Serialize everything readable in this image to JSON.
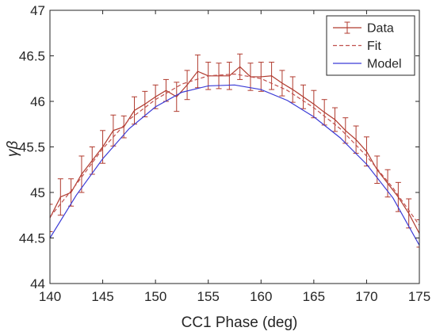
{
  "chart_data": {
    "type": "line",
    "xlabel": "CC1 Phase (deg)",
    "ylabel": "γβ",
    "xlim": [
      140,
      175
    ],
    "ylim": [
      44,
      47
    ],
    "xticks": [
      "140",
      "145",
      "150",
      "155",
      "160",
      "165",
      "170",
      "175"
    ],
    "yticks": [
      "44",
      "44.5",
      "45",
      "45.5",
      "46",
      "46.5",
      "47"
    ],
    "legend_position": "top-right",
    "grid": false,
    "series": [
      {
        "name": "Data",
        "style": "errorbar",
        "color": "#b03a2e",
        "x": [
          140,
          141,
          142,
          143,
          144,
          145,
          146,
          147,
          148,
          149,
          150,
          151,
          152,
          153,
          154,
          155,
          156,
          157,
          158,
          159,
          160,
          161,
          162,
          163,
          164,
          165,
          166,
          167,
          168,
          169,
          170,
          171,
          172,
          173,
          174,
          175
        ],
        "y": [
          44.72,
          44.95,
          45.0,
          45.2,
          45.35,
          45.5,
          45.68,
          45.72,
          45.9,
          45.97,
          46.05,
          46.12,
          46.05,
          46.18,
          46.33,
          46.28,
          46.28,
          46.28,
          46.38,
          46.27,
          46.27,
          46.28,
          46.2,
          46.13,
          46.05,
          45.97,
          45.88,
          45.8,
          45.68,
          45.58,
          45.45,
          45.25,
          45.1,
          44.95,
          44.77,
          44.55
        ],
        "err": [
          0.15,
          0.2,
          0.15,
          0.2,
          0.15,
          0.18,
          0.17,
          0.12,
          0.15,
          0.14,
          0.13,
          0.12,
          0.16,
          0.16,
          0.18,
          0.15,
          0.14,
          0.15,
          0.14,
          0.15,
          0.16,
          0.15,
          0.14,
          0.14,
          0.13,
          0.15,
          0.14,
          0.13,
          0.14,
          0.15,
          0.16,
          0.15,
          0.15,
          0.16,
          0.16,
          0.15
        ]
      },
      {
        "name": "Fit",
        "style": "dashed",
        "color": "#c0504d",
        "x": [
          140,
          142.5,
          145,
          147.5,
          150,
          152.5,
          155,
          157.5,
          160,
          162.5,
          165,
          167.5,
          170,
          172.5,
          175
        ],
        "y": [
          44.73,
          45.09,
          45.48,
          45.8,
          46.02,
          46.19,
          46.28,
          46.3,
          46.25,
          46.12,
          45.93,
          45.7,
          45.4,
          45.05,
          44.64
        ]
      },
      {
        "name": "Model",
        "style": "solid",
        "color": "#3b3bd6",
        "x": [
          140,
          142.5,
          145,
          147.5,
          150,
          152.5,
          155,
          157.5,
          160,
          162.5,
          165,
          167.5,
          170,
          172.5,
          175
        ],
        "y": [
          44.5,
          44.97,
          45.37,
          45.7,
          45.94,
          46.1,
          46.17,
          46.18,
          46.13,
          46.01,
          45.83,
          45.6,
          45.31,
          44.94,
          44.42
        ]
      }
    ]
  }
}
